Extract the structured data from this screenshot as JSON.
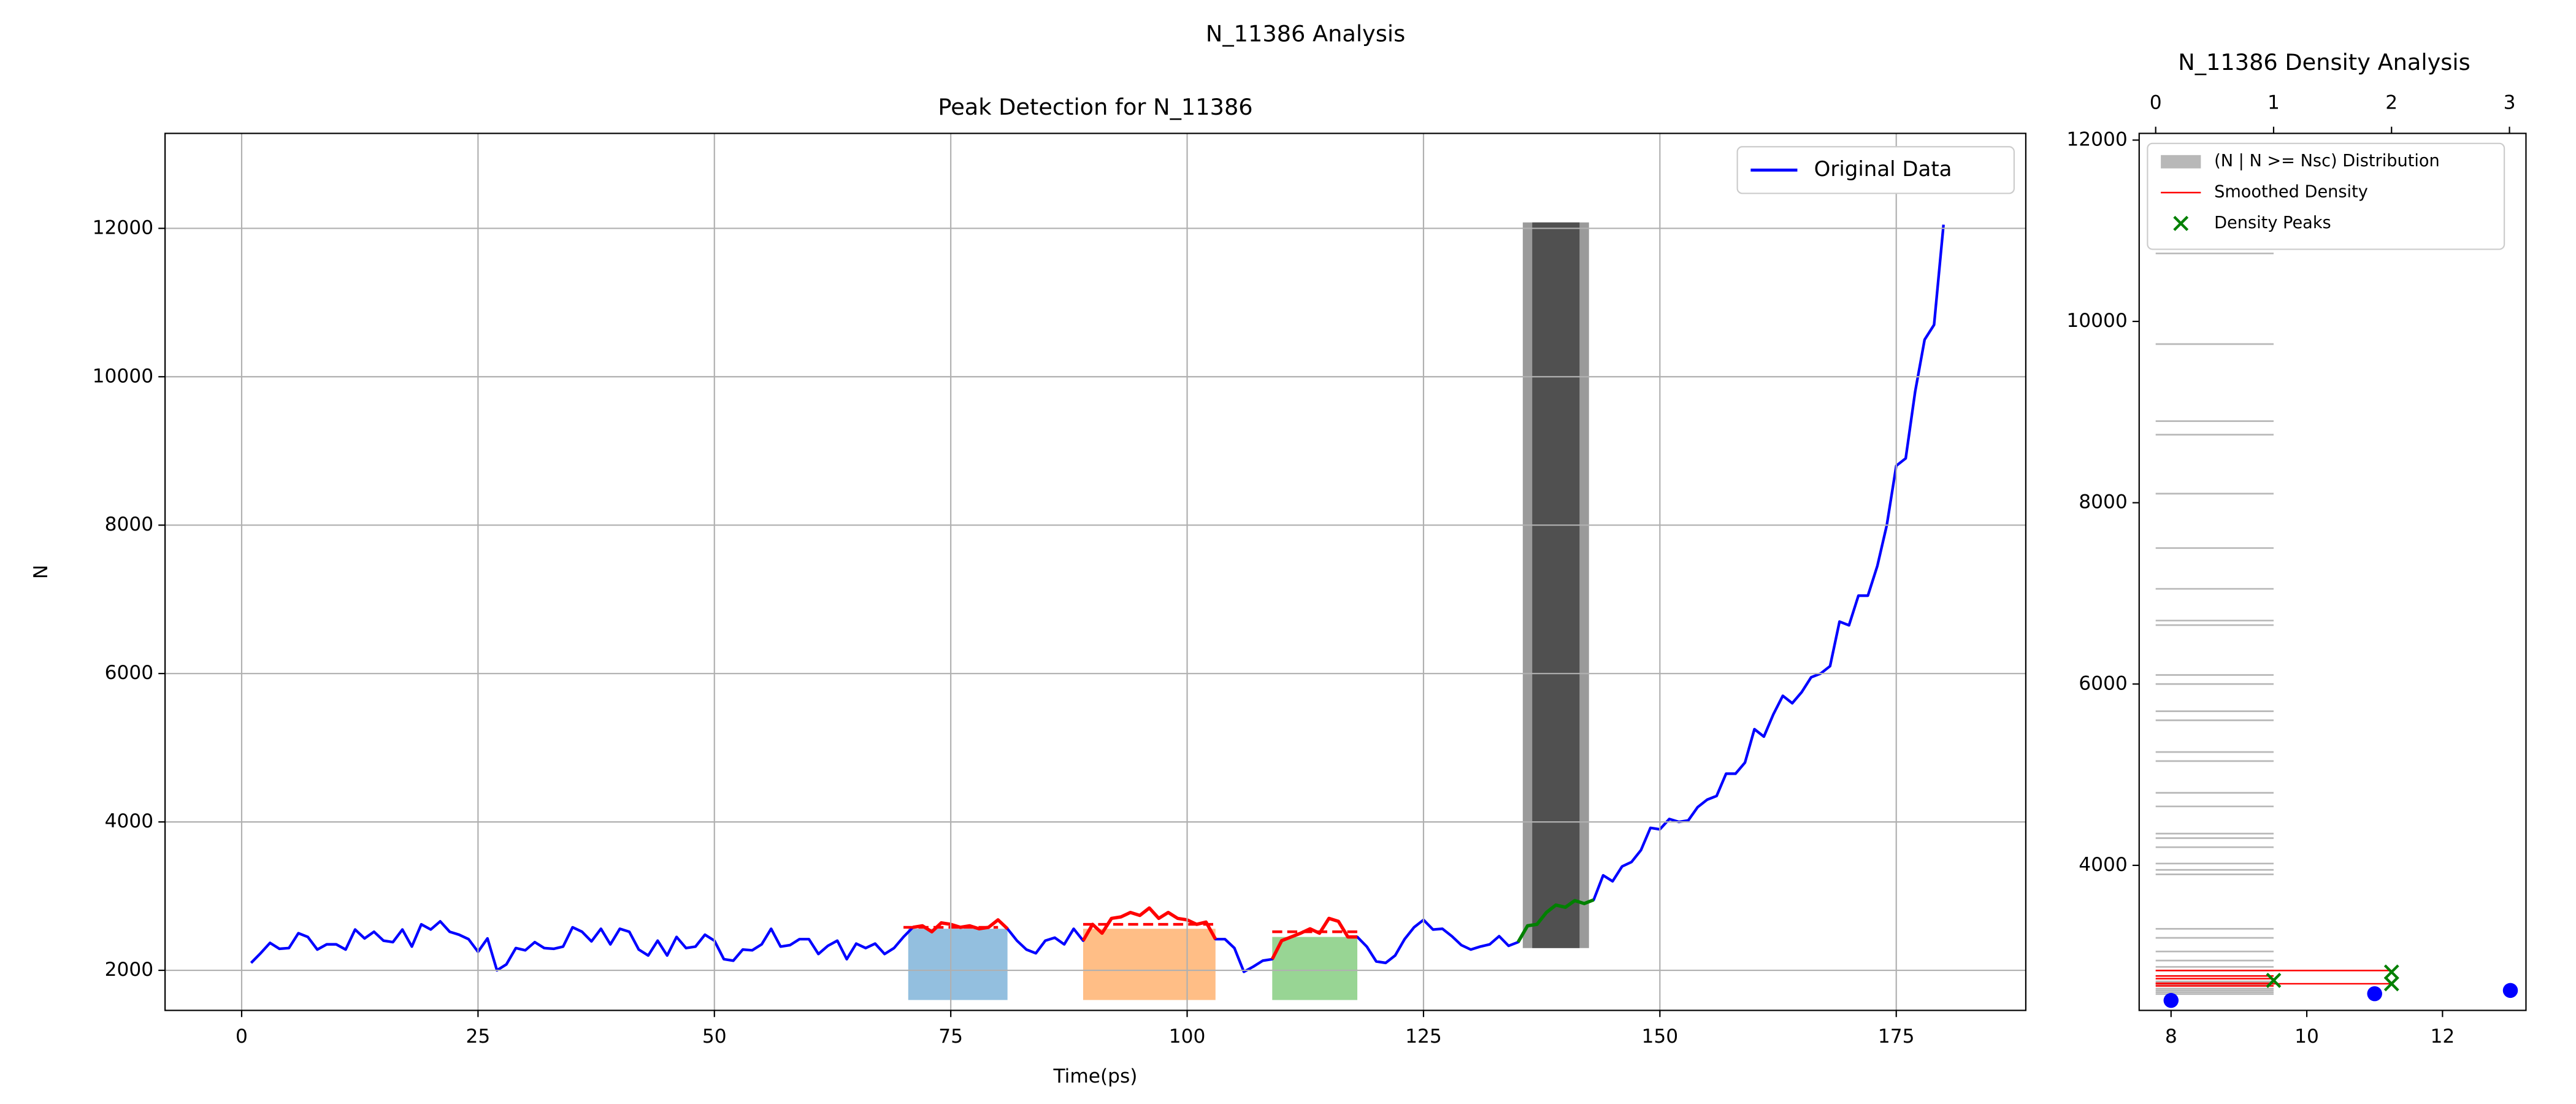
{
  "figure_title": "N_11386 Analysis",
  "chart_data": [
    {
      "type": "line",
      "title": "Peak Detection for N_11386",
      "x_label": "Time(ps)",
      "y_label": "N",
      "xlim": [
        -8.1,
        188.7
      ],
      "xticks": [
        0,
        25,
        50,
        75,
        100,
        125,
        150,
        175
      ],
      "ylim": [
        1460,
        13280
      ],
      "yticks": [
        2000,
        4000,
        6000,
        8000,
        10000,
        12000
      ],
      "grid": true,
      "legend": "upper right",
      "x": [
        1,
        2,
        3,
        4,
        5,
        6,
        7,
        8,
        9,
        10,
        11,
        12,
        13,
        14,
        15,
        16,
        17,
        18,
        19,
        20,
        21,
        22,
        23,
        24,
        25,
        26,
        27,
        28,
        29,
        30,
        31,
        32,
        33,
        34,
        35,
        36,
        37,
        38,
        39,
        40,
        41,
        42,
        43,
        44,
        45,
        46,
        47,
        48,
        49,
        50,
        51,
        52,
        53,
        54,
        55,
        56,
        57,
        58,
        59,
        60,
        61,
        62,
        63,
        64,
        65,
        66,
        67,
        68,
        69,
        70,
        71,
        72,
        73,
        74,
        75,
        76,
        77,
        78,
        79,
        80,
        81,
        82,
        83,
        84,
        85,
        86,
        87,
        88,
        89,
        90,
        91,
        92,
        93,
        94,
        95,
        96,
        97,
        98,
        99,
        100,
        101,
        102,
        103,
        104,
        105,
        106,
        107,
        108,
        109,
        110,
        111,
        112,
        113,
        114,
        115,
        116,
        117,
        118,
        119,
        120,
        121,
        122,
        123,
        124,
        125,
        126,
        127,
        128,
        129,
        130,
        131,
        132,
        133,
        134,
        135,
        136,
        137,
        138,
        139,
        140,
        141,
        142,
        143,
        144,
        145,
        146,
        147,
        148,
        149,
        150,
        151,
        152,
        153,
        154,
        155,
        156,
        157,
        158,
        159,
        160,
        161,
        162,
        163,
        164,
        165,
        166,
        167,
        168,
        169,
        170,
        171,
        172,
        173,
        174,
        175,
        176,
        177,
        178,
        179,
        180
      ],
      "series": [
        {
          "name": "Original Data",
          "color": "#0000ff",
          "values": [
            2100,
            2230,
            2370,
            2290,
            2300,
            2500,
            2450,
            2280,
            2350,
            2350,
            2280,
            2550,
            2430,
            2520,
            2400,
            2380,
            2550,
            2320,
            2620,
            2550,
            2660,
            2520,
            2480,
            2420,
            2250,
            2430,
            2000,
            2080,
            2300,
            2270,
            2380,
            2300,
            2290,
            2320,
            2580,
            2520,
            2390,
            2560,
            2350,
            2560,
            2520,
            2280,
            2200,
            2400,
            2200,
            2450,
            2300,
            2320,
            2480,
            2400,
            2150,
            2130,
            2280,
            2270,
            2350,
            2560,
            2320,
            2340,
            2420,
            2420,
            2220,
            2330,
            2400,
            2150,
            2360,
            2300,
            2360,
            2220,
            2300,
            2450,
            2580,
            2600,
            2520,
            2640,
            2620,
            2580,
            2600,
            2560,
            2580,
            2680,
            2560,
            2400,
            2280,
            2230,
            2400,
            2440,
            2350,
            2560,
            2400,
            2620,
            2500,
            2700,
            2720,
            2780,
            2740,
            2840,
            2700,
            2780,
            2700,
            2680,
            2620,
            2650,
            2420,
            2420,
            2300,
            1980,
            2050,
            2130,
            2150,
            2400,
            2450,
            2500,
            2560,
            2500,
            2700,
            2660,
            2450,
            2450,
            2320,
            2120,
            2100,
            2200,
            2420,
            2580,
            2680,
            2550,
            2560,
            2460,
            2340,
            2280,
            2320,
            2350,
            2460,
            2330,
            2380,
            2600,
            2620,
            2780,
            2880,
            2850,
            2940,
            2900,
            2950,
            3280,
            3200,
            3400,
            3460,
            3620,
            3920,
            3900,
            4040,
            4000,
            4020,
            4200,
            4300,
            4350,
            4650,
            4650,
            4800,
            5250,
            5150,
            5450,
            5700,
            5600,
            5750,
            5950,
            6000,
            6100,
            6700,
            6650,
            7050,
            7050,
            7450,
            8000,
            8800,
            8900,
            9800,
            10500,
            10700,
            12050
          ]
        }
      ],
      "segments": [
        {
          "color": "#ff0000",
          "x_range": [
            71,
            81
          ]
        },
        {
          "color": "#ff0000",
          "x_range": [
            89,
            103
          ]
        },
        {
          "color": "#ff0000",
          "x_range": [
            109,
            118
          ]
        },
        {
          "color": "#008000",
          "x_range": [
            135,
            143
          ]
        }
      ],
      "levels": [
        {
          "color": "#ff0000",
          "x": [
            70,
            80
          ],
          "value": 2580
        },
        {
          "color": "#ff0000",
          "x": [
            89,
            103
          ],
          "value": 2620
        },
        {
          "color": "#ff0000",
          "x": [
            109,
            118
          ],
          "value": 2520
        }
      ],
      "regions": [
        {
          "color": "#93bfdf",
          "x": [
            70.5,
            81
          ],
          "y": [
            1600,
            2560
          ]
        },
        {
          "color": "#ffbe86",
          "x": [
            89,
            103
          ],
          "y": [
            1600,
            2560
          ]
        },
        {
          "color": "#98d594",
          "x": [
            109,
            118
          ],
          "y": [
            1600,
            2450
          ]
        }
      ],
      "bands": [
        {
          "color": "#9a9a9a",
          "x": [
            135.5,
            142.5
          ],
          "y": [
            2300,
            12080
          ]
        },
        {
          "color": "#505050",
          "x": [
            136.5,
            141.5
          ],
          "y": [
            2300,
            12080
          ]
        }
      ]
    },
    {
      "type": "density",
      "title": "N_11386 Density Analysis",
      "legend": "upper left",
      "ylim": [
        2400,
        12074
      ],
      "yticks": [
        4000,
        6000,
        8000,
        10000,
        12000
      ],
      "x2lim": [
        -0.14,
        3.14
      ],
      "x2ticks": [
        0,
        1,
        2,
        3
      ],
      "xlim": [
        7.53,
        13.23
      ],
      "xticks": [
        8,
        10,
        12
      ],
      "series": [
        {
          "name": "(N | N >= Nsc) Distribution",
          "color": "#b8b8b8",
          "y": [
            10750,
            9750,
            8900,
            8750,
            8100,
            7500,
            7050,
            6700,
            6650,
            6100,
            6000,
            5700,
            5600,
            5250,
            5150,
            4800,
            4650,
            4350,
            4300,
            4200,
            4020,
            3950,
            3900,
            3300,
            3200,
            3050,
            2950,
            2880,
            2840,
            2780,
            2720,
            2700,
            2680,
            2640,
            2620,
            2600,
            2580
          ],
          "values": [
            1,
            1,
            1,
            1,
            1,
            1,
            1,
            1,
            1,
            1,
            1,
            1,
            1,
            1,
            1,
            1,
            1,
            1,
            1,
            1,
            1,
            1,
            1,
            1,
            1,
            1,
            1,
            1,
            1,
            1,
            1,
            1,
            1,
            1,
            1,
            1,
            1
          ]
        },
        {
          "name": "Smoothed Density",
          "color": "#ff0000",
          "y": [
            2840,
            2780,
            2750,
            2700,
            2694,
            2670
          ],
          "values": [
            2,
            1,
            1,
            1,
            2,
            1
          ]
        },
        {
          "name": "Density Peaks",
          "color": "#008000",
          "x": [
            1,
            2,
            2
          ],
          "y": [
            2731,
            2823,
            2694
          ]
        },
        {
          "color": "#0000ff",
          "x": [
            8,
            11,
            13
          ],
          "y": [
            2510,
            2584,
            2620
          ]
        }
      ]
    }
  ]
}
